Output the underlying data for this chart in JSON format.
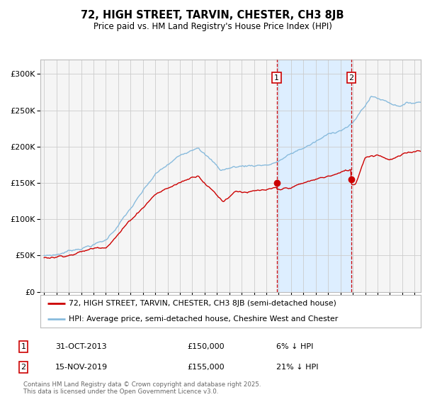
{
  "title": "72, HIGH STREET, TARVIN, CHESTER, CH3 8JB",
  "subtitle": "Price paid vs. HM Land Registry's House Price Index (HPI)",
  "hpi_label": "HPI: Average price, semi-detached house, Cheshire West and Chester",
  "price_label": "72, HIGH STREET, TARVIN, CHESTER, CH3 8JB (semi-detached house)",
  "purchase1_date": "31-OCT-2013",
  "purchase1_price": 150000,
  "purchase1_pct": "6%",
  "purchase2_date": "15-NOV-2019",
  "purchase2_price": 155000,
  "purchase2_pct": "21%",
  "purchase1_x": 2013.83,
  "purchase2_x": 2019.87,
  "ylim": [
    0,
    320000
  ],
  "xlim_start": 1994.7,
  "xlim_end": 2025.5,
  "footnote": "Contains HM Land Registry data © Crown copyright and database right 2025.\nThis data is licensed under the Open Government Licence v3.0.",
  "hpi_color": "#88bbdd",
  "price_color": "#cc0000",
  "shade_color": "#ddeeff",
  "grid_color": "#cccccc",
  "bg_color": "#f5f5f5"
}
